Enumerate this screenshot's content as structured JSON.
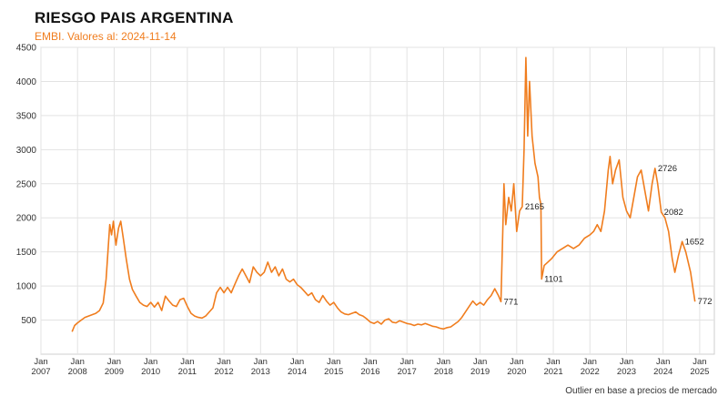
{
  "chart_data": {
    "type": "line",
    "title": "RIESGO PAIS ARGENTINA",
    "subtitle": "EMBI. Valores al: 2024-11-14",
    "note": "Outlier en base a precios de mercado",
    "line_color": "#f07d1e",
    "grid": true,
    "xlim": [
      2007.0,
      2025.4
    ],
    "ylim": [
      0,
      4500
    ],
    "yticks": [
      500,
      1000,
      1500,
      2000,
      2500,
      3000,
      3500,
      4000,
      4500
    ],
    "xticks": [
      {
        "year": 2007,
        "month": "Jan",
        "label": "2007"
      },
      {
        "year": 2008,
        "month": "Jan",
        "label": "2008"
      },
      {
        "year": 2009,
        "month": "Jan",
        "label": "2009"
      },
      {
        "year": 2010,
        "month": "Jan",
        "label": "2010"
      },
      {
        "year": 2011,
        "month": "Jan",
        "label": "2011"
      },
      {
        "year": 2012,
        "month": "Jan",
        "label": "2012"
      },
      {
        "year": 2013,
        "month": "Jan",
        "label": "2013"
      },
      {
        "year": 2014,
        "month": "Jan",
        "label": "2014"
      },
      {
        "year": 2015,
        "month": "Jan",
        "label": "2015"
      },
      {
        "year": 2016,
        "month": "Jan",
        "label": "2016"
      },
      {
        "year": 2017,
        "month": "Jan",
        "label": "2017"
      },
      {
        "year": 2018,
        "month": "Jan",
        "label": "2018"
      },
      {
        "year": 2019,
        "month": "Jan",
        "label": "2019"
      },
      {
        "year": 2020,
        "month": "Jan",
        "label": "2020"
      },
      {
        "year": 2021,
        "month": "Jan",
        "label": "2021"
      },
      {
        "year": 2022,
        "month": "Jan",
        "label": "2022"
      },
      {
        "year": 2023,
        "month": "Jan",
        "label": "2023"
      },
      {
        "year": 2024,
        "month": "Jan",
        "label": "2024"
      },
      {
        "year": 2025,
        "month": "Jan",
        "label": "2025"
      }
    ],
    "series": [
      {
        "values": [
          [
            2007.85,
            330
          ],
          [
            2007.92,
            420
          ],
          [
            2008.0,
            460
          ],
          [
            2008.1,
            500
          ],
          [
            2008.2,
            540
          ],
          [
            2008.3,
            560
          ],
          [
            2008.4,
            580
          ],
          [
            2008.5,
            600
          ],
          [
            2008.6,
            640
          ],
          [
            2008.7,
            750
          ],
          [
            2008.78,
            1100
          ],
          [
            2008.83,
            1500
          ],
          [
            2008.88,
            1900
          ],
          [
            2008.93,
            1750
          ],
          [
            2008.98,
            1950
          ],
          [
            2009.05,
            1600
          ],
          [
            2009.12,
            1850
          ],
          [
            2009.18,
            1950
          ],
          [
            2009.25,
            1700
          ],
          [
            2009.33,
            1400
          ],
          [
            2009.42,
            1100
          ],
          [
            2009.5,
            950
          ],
          [
            2009.6,
            850
          ],
          [
            2009.7,
            760
          ],
          [
            2009.8,
            720
          ],
          [
            2009.9,
            700
          ],
          [
            2010.0,
            760
          ],
          [
            2010.1,
            690
          ],
          [
            2010.2,
            760
          ],
          [
            2010.3,
            640
          ],
          [
            2010.4,
            850
          ],
          [
            2010.5,
            780
          ],
          [
            2010.6,
            720
          ],
          [
            2010.7,
            700
          ],
          [
            2010.8,
            800
          ],
          [
            2010.9,
            820
          ],
          [
            2011.0,
            700
          ],
          [
            2011.1,
            600
          ],
          [
            2011.2,
            560
          ],
          [
            2011.3,
            540
          ],
          [
            2011.4,
            530
          ],
          [
            2011.5,
            560
          ],
          [
            2011.6,
            620
          ],
          [
            2011.7,
            680
          ],
          [
            2011.8,
            900
          ],
          [
            2011.9,
            980
          ],
          [
            2012.0,
            900
          ],
          [
            2012.1,
            980
          ],
          [
            2012.2,
            900
          ],
          [
            2012.3,
            1030
          ],
          [
            2012.4,
            1150
          ],
          [
            2012.5,
            1250
          ],
          [
            2012.6,
            1150
          ],
          [
            2012.7,
            1050
          ],
          [
            2012.8,
            1280
          ],
          [
            2012.9,
            1200
          ],
          [
            2013.0,
            1150
          ],
          [
            2013.1,
            1200
          ],
          [
            2013.2,
            1350
          ],
          [
            2013.3,
            1200
          ],
          [
            2013.4,
            1280
          ],
          [
            2013.5,
            1150
          ],
          [
            2013.6,
            1250
          ],
          [
            2013.7,
            1100
          ],
          [
            2013.8,
            1060
          ],
          [
            2013.9,
            1100
          ],
          [
            2014.0,
            1020
          ],
          [
            2014.1,
            980
          ],
          [
            2014.2,
            920
          ],
          [
            2014.3,
            860
          ],
          [
            2014.4,
            900
          ],
          [
            2014.5,
            800
          ],
          [
            2014.6,
            760
          ],
          [
            2014.7,
            860
          ],
          [
            2014.8,
            780
          ],
          [
            2014.9,
            720
          ],
          [
            2015.0,
            760
          ],
          [
            2015.1,
            680
          ],
          [
            2015.2,
            620
          ],
          [
            2015.3,
            590
          ],
          [
            2015.4,
            580
          ],
          [
            2015.5,
            600
          ],
          [
            2015.6,
            620
          ],
          [
            2015.7,
            580
          ],
          [
            2015.8,
            560
          ],
          [
            2015.9,
            520
          ],
          [
            2016.0,
            470
          ],
          [
            2016.1,
            450
          ],
          [
            2016.2,
            480
          ],
          [
            2016.3,
            440
          ],
          [
            2016.4,
            500
          ],
          [
            2016.5,
            520
          ],
          [
            2016.6,
            470
          ],
          [
            2016.7,
            460
          ],
          [
            2016.8,
            490
          ],
          [
            2016.9,
            470
          ],
          [
            2017.0,
            450
          ],
          [
            2017.1,
            440
          ],
          [
            2017.2,
            420
          ],
          [
            2017.3,
            440
          ],
          [
            2017.4,
            430
          ],
          [
            2017.5,
            450
          ],
          [
            2017.6,
            430
          ],
          [
            2017.7,
            410
          ],
          [
            2017.8,
            400
          ],
          [
            2017.9,
            380
          ],
          [
            2018.0,
            370
          ],
          [
            2018.1,
            390
          ],
          [
            2018.2,
            400
          ],
          [
            2018.3,
            440
          ],
          [
            2018.4,
            480
          ],
          [
            2018.5,
            540
          ],
          [
            2018.6,
            620
          ],
          [
            2018.7,
            700
          ],
          [
            2018.8,
            780
          ],
          [
            2018.9,
            720
          ],
          [
            2019.0,
            760
          ],
          [
            2019.1,
            720
          ],
          [
            2019.2,
            800
          ],
          [
            2019.3,
            860
          ],
          [
            2019.4,
            960
          ],
          [
            2019.5,
            860
          ],
          [
            2019.57,
            771
          ],
          [
            2019.62,
            1800
          ],
          [
            2019.65,
            2500
          ],
          [
            2019.7,
            1900
          ],
          [
            2019.78,
            2300
          ],
          [
            2019.85,
            2100
          ],
          [
            2019.92,
            2500
          ],
          [
            2020.0,
            1800
          ],
          [
            2020.08,
            2100
          ],
          [
            2020.15,
            2165
          ],
          [
            2020.2,
            3000
          ],
          [
            2020.25,
            4350
          ],
          [
            2020.3,
            3200
          ],
          [
            2020.35,
            4000
          ],
          [
            2020.42,
            3200
          ],
          [
            2020.5,
            2800
          ],
          [
            2020.58,
            2600
          ],
          [
            2020.62,
            2300
          ],
          [
            2020.66,
            2200
          ],
          [
            2020.68,
            1101
          ],
          [
            2020.75,
            1300
          ],
          [
            2020.85,
            1350
          ],
          [
            2020.95,
            1400
          ],
          [
            2021.1,
            1500
          ],
          [
            2021.25,
            1550
          ],
          [
            2021.4,
            1600
          ],
          [
            2021.55,
            1550
          ],
          [
            2021.7,
            1600
          ],
          [
            2021.85,
            1700
          ],
          [
            2022.0,
            1750
          ],
          [
            2022.1,
            1800
          ],
          [
            2022.2,
            1900
          ],
          [
            2022.3,
            1800
          ],
          [
            2022.4,
            2100
          ],
          [
            2022.5,
            2700
          ],
          [
            2022.55,
            2900
          ],
          [
            2022.62,
            2500
          ],
          [
            2022.7,
            2700
          ],
          [
            2022.8,
            2850
          ],
          [
            2022.9,
            2300
          ],
          [
            2023.0,
            2100
          ],
          [
            2023.1,
            2000
          ],
          [
            2023.2,
            2300
          ],
          [
            2023.3,
            2600
          ],
          [
            2023.4,
            2700
          ],
          [
            2023.5,
            2400
          ],
          [
            2023.6,
            2100
          ],
          [
            2023.7,
            2500
          ],
          [
            2023.78,
            2726
          ],
          [
            2023.85,
            2500
          ],
          [
            2023.95,
            2082
          ],
          [
            2024.05,
            2000
          ],
          [
            2024.15,
            1800
          ],
          [
            2024.25,
            1400
          ],
          [
            2024.32,
            1200
          ],
          [
            2024.42,
            1450
          ],
          [
            2024.52,
            1652
          ],
          [
            2024.62,
            1500
          ],
          [
            2024.75,
            1200
          ],
          [
            2024.87,
            772
          ]
        ]
      }
    ],
    "annotations": [
      {
        "x": 2019.57,
        "y": 771,
        "text": "771"
      },
      {
        "x": 2020.15,
        "y": 2165,
        "text": "2165"
      },
      {
        "x": 2020.68,
        "y": 1101,
        "text": "1101"
      },
      {
        "x": 2023.78,
        "y": 2726,
        "text": "2726"
      },
      {
        "x": 2023.95,
        "y": 2082,
        "text": "2082"
      },
      {
        "x": 2024.52,
        "y": 1652,
        "text": "1652"
      },
      {
        "x": 2024.87,
        "y": 772,
        "text": "772"
      }
    ]
  }
}
